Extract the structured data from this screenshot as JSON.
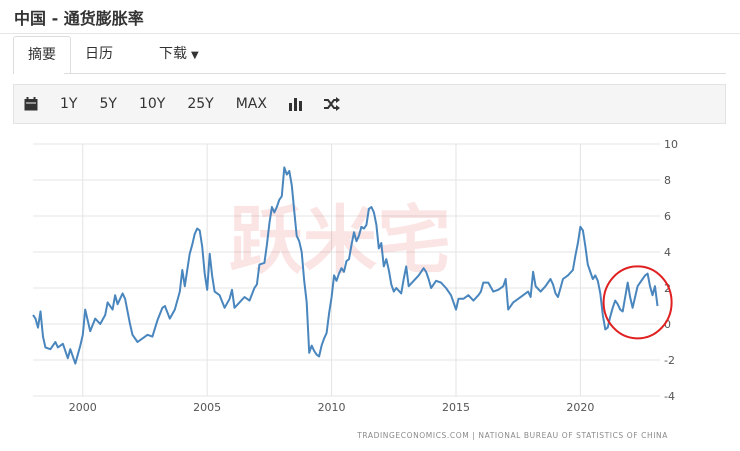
{
  "title": "中国 - 通货膨胀率",
  "tabs": [
    {
      "label": "摘要"
    },
    {
      "label": "日历"
    },
    {
      "label": "下载"
    }
  ],
  "toolbar": {
    "icons": {
      "calendar": "calendar-icon",
      "bar": "bar-chart-icon",
      "shuffle": "shuffle-icon"
    },
    "ranges": [
      "1Y",
      "5Y",
      "10Y",
      "25Y",
      "MAX"
    ]
  },
  "source": "TRADINGECONOMICS.COM | NATIONAL BUREAU OF STATISTICS OF CHINA",
  "watermark": "跃米宅",
  "colors": {
    "line": "#4a86be",
    "highlight": "#e02020",
    "grid": "#e4e4e4"
  },
  "chart_data": {
    "type": "line",
    "x_ticks": [
      2000,
      2005,
      2010,
      2015,
      2020
    ],
    "y_ticks": [
      10,
      8,
      6,
      4,
      2,
      0,
      -2,
      -4
    ],
    "ylim": [
      -4,
      10
    ],
    "xlim": [
      1998,
      2023.2
    ],
    "grid": true,
    "y_axis_side": "right",
    "annotation": {
      "type": "circle",
      "x_center": 2022.3,
      "y_center": 1.2
    },
    "series": [
      {
        "points": [
          [
            1998.0,
            0.5
          ],
          [
            1998.1,
            0.3
          ],
          [
            1998.2,
            -0.2
          ],
          [
            1998.3,
            0.7
          ],
          [
            1998.4,
            -0.7
          ],
          [
            1998.5,
            -1.3
          ],
          [
            1998.7,
            -1.4
          ],
          [
            1998.9,
            -1.0
          ],
          [
            1999.0,
            -1.3
          ],
          [
            1999.2,
            -1.1
          ],
          [
            1999.4,
            -1.9
          ],
          [
            1999.5,
            -1.4
          ],
          [
            1999.7,
            -2.2
          ],
          [
            1999.9,
            -1.2
          ],
          [
            2000.0,
            -0.6
          ],
          [
            2000.1,
            0.8
          ],
          [
            2000.3,
            -0.4
          ],
          [
            2000.5,
            0.3
          ],
          [
            2000.7,
            0.0
          ],
          [
            2000.9,
            0.5
          ],
          [
            2001.0,
            1.2
          ],
          [
            2001.2,
            0.8
          ],
          [
            2001.3,
            1.6
          ],
          [
            2001.4,
            1.1
          ],
          [
            2001.6,
            1.7
          ],
          [
            2001.7,
            1.4
          ],
          [
            2001.9,
            0.0
          ],
          [
            2002.0,
            -0.6
          ],
          [
            2002.2,
            -1.0
          ],
          [
            2002.4,
            -0.8
          ],
          [
            2002.6,
            -0.6
          ],
          [
            2002.8,
            -0.7
          ],
          [
            2003.0,
            0.2
          ],
          [
            2003.2,
            0.9
          ],
          [
            2003.3,
            1.0
          ],
          [
            2003.5,
            0.3
          ],
          [
            2003.7,
            0.8
          ],
          [
            2003.9,
            1.8
          ],
          [
            2004.0,
            3.0
          ],
          [
            2004.1,
            2.1
          ],
          [
            2004.3,
            3.9
          ],
          [
            2004.4,
            4.4
          ],
          [
            2004.5,
            5.0
          ],
          [
            2004.6,
            5.3
          ],
          [
            2004.7,
            5.2
          ],
          [
            2004.8,
            4.3
          ],
          [
            2004.9,
            2.8
          ],
          [
            2005.0,
            1.9
          ],
          [
            2005.1,
            3.9
          ],
          [
            2005.2,
            2.7
          ],
          [
            2005.3,
            1.8
          ],
          [
            2005.5,
            1.6
          ],
          [
            2005.7,
            0.9
          ],
          [
            2005.9,
            1.4
          ],
          [
            2006.0,
            1.9
          ],
          [
            2006.1,
            0.9
          ],
          [
            2006.3,
            1.2
          ],
          [
            2006.5,
            1.5
          ],
          [
            2006.7,
            1.3
          ],
          [
            2006.9,
            2.0
          ],
          [
            2007.0,
            2.2
          ],
          [
            2007.1,
            3.3
          ],
          [
            2007.3,
            3.4
          ],
          [
            2007.4,
            4.4
          ],
          [
            2007.5,
            5.6
          ],
          [
            2007.6,
            6.5
          ],
          [
            2007.7,
            6.2
          ],
          [
            2007.8,
            6.5
          ],
          [
            2007.9,
            6.9
          ],
          [
            2008.0,
            7.1
          ],
          [
            2008.1,
            8.7
          ],
          [
            2008.2,
            8.3
          ],
          [
            2008.3,
            8.5
          ],
          [
            2008.4,
            7.7
          ],
          [
            2008.5,
            6.3
          ],
          [
            2008.6,
            4.9
          ],
          [
            2008.7,
            4.6
          ],
          [
            2008.8,
            4.0
          ],
          [
            2008.9,
            2.4
          ],
          [
            2009.0,
            1.2
          ],
          [
            2009.1,
            -1.6
          ],
          [
            2009.2,
            -1.2
          ],
          [
            2009.3,
            -1.5
          ],
          [
            2009.4,
            -1.7
          ],
          [
            2009.5,
            -1.8
          ],
          [
            2009.6,
            -1.2
          ],
          [
            2009.7,
            -0.8
          ],
          [
            2009.8,
            -0.5
          ],
          [
            2009.9,
            0.6
          ],
          [
            2010.0,
            1.5
          ],
          [
            2010.1,
            2.7
          ],
          [
            2010.2,
            2.4
          ],
          [
            2010.3,
            2.8
          ],
          [
            2010.4,
            3.1
          ],
          [
            2010.5,
            2.9
          ],
          [
            2010.6,
            3.5
          ],
          [
            2010.7,
            3.6
          ],
          [
            2010.8,
            4.4
          ],
          [
            2010.9,
            5.1
          ],
          [
            2011.0,
            4.6
          ],
          [
            2011.1,
            4.9
          ],
          [
            2011.2,
            5.4
          ],
          [
            2011.3,
            5.3
          ],
          [
            2011.4,
            5.5
          ],
          [
            2011.5,
            6.4
          ],
          [
            2011.6,
            6.5
          ],
          [
            2011.7,
            6.2
          ],
          [
            2011.8,
            5.5
          ],
          [
            2011.9,
            4.2
          ],
          [
            2012.0,
            4.5
          ],
          [
            2012.1,
            3.2
          ],
          [
            2012.2,
            3.6
          ],
          [
            2012.3,
            3.0
          ],
          [
            2012.4,
            2.2
          ],
          [
            2012.5,
            1.8
          ],
          [
            2012.6,
            2.0
          ],
          [
            2012.8,
            1.7
          ],
          [
            2012.9,
            2.5
          ],
          [
            2013.0,
            3.2
          ],
          [
            2013.1,
            2.1
          ],
          [
            2013.3,
            2.4
          ],
          [
            2013.5,
            2.7
          ],
          [
            2013.7,
            3.1
          ],
          [
            2013.8,
            2.9
          ],
          [
            2013.9,
            2.5
          ],
          [
            2014.0,
            2.0
          ],
          [
            2014.2,
            2.4
          ],
          [
            2014.4,
            2.3
          ],
          [
            2014.6,
            2.0
          ],
          [
            2014.8,
            1.6
          ],
          [
            2015.0,
            0.8
          ],
          [
            2015.1,
            1.4
          ],
          [
            2015.3,
            1.4
          ],
          [
            2015.5,
            1.6
          ],
          [
            2015.7,
            1.3
          ],
          [
            2015.9,
            1.6
          ],
          [
            2016.0,
            1.8
          ],
          [
            2016.1,
            2.3
          ],
          [
            2016.3,
            2.3
          ],
          [
            2016.5,
            1.8
          ],
          [
            2016.7,
            1.9
          ],
          [
            2016.9,
            2.1
          ],
          [
            2017.0,
            2.5
          ],
          [
            2017.1,
            0.8
          ],
          [
            2017.3,
            1.2
          ],
          [
            2017.5,
            1.4
          ],
          [
            2017.7,
            1.6
          ],
          [
            2017.9,
            1.8
          ],
          [
            2018.0,
            1.5
          ],
          [
            2018.1,
            2.9
          ],
          [
            2018.2,
            2.1
          ],
          [
            2018.4,
            1.8
          ],
          [
            2018.6,
            2.1
          ],
          [
            2018.8,
            2.5
          ],
          [
            2018.9,
            2.2
          ],
          [
            2019.0,
            1.7
          ],
          [
            2019.1,
            1.5
          ],
          [
            2019.3,
            2.5
          ],
          [
            2019.5,
            2.7
          ],
          [
            2019.7,
            3.0
          ],
          [
            2019.8,
            3.8
          ],
          [
            2019.9,
            4.5
          ],
          [
            2020.0,
            5.4
          ],
          [
            2020.1,
            5.2
          ],
          [
            2020.2,
            4.3
          ],
          [
            2020.3,
            3.3
          ],
          [
            2020.5,
            2.5
          ],
          [
            2020.6,
            2.7
          ],
          [
            2020.7,
            2.4
          ],
          [
            2020.8,
            1.7
          ],
          [
            2020.9,
            0.5
          ],
          [
            2021.0,
            -0.3
          ],
          [
            2021.1,
            -0.2
          ],
          [
            2021.2,
            0.4
          ],
          [
            2021.3,
            0.9
          ],
          [
            2021.4,
            1.3
          ],
          [
            2021.5,
            1.1
          ],
          [
            2021.6,
            0.8
          ],
          [
            2021.7,
            0.7
          ],
          [
            2021.8,
            1.5
          ],
          [
            2021.9,
            2.3
          ],
          [
            2022.0,
            1.5
          ],
          [
            2022.1,
            0.9
          ],
          [
            2022.2,
            1.5
          ],
          [
            2022.3,
            2.1
          ],
          [
            2022.5,
            2.5
          ],
          [
            2022.6,
            2.7
          ],
          [
            2022.7,
            2.8
          ],
          [
            2022.8,
            2.1
          ],
          [
            2022.9,
            1.6
          ],
          [
            2023.0,
            2.1
          ],
          [
            2023.1,
            1.0
          ]
        ]
      }
    ]
  }
}
